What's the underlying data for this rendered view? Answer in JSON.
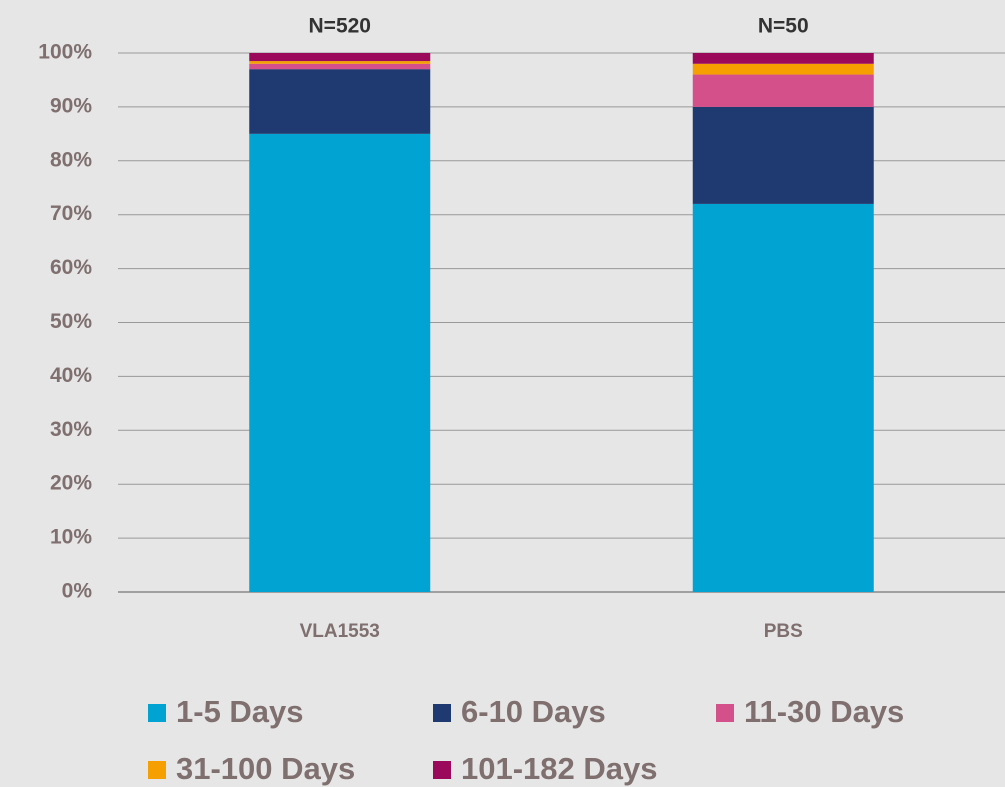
{
  "chart_data": {
    "type": "stacked_bar",
    "categories": [
      "VLA1553",
      "PBS"
    ],
    "annotations": [
      "N=520",
      "N=50"
    ],
    "series": [
      {
        "name": "1-5 Days",
        "color": "#00a3d1",
        "values": [
          85,
          72
        ]
      },
      {
        "name": "6-10 Days",
        "color": "#1f3a70",
        "values": [
          12,
          18
        ]
      },
      {
        "name": "11-30 Days",
        "color": "#d4508a",
        "values": [
          1,
          6
        ]
      },
      {
        "name": "31-100 Days",
        "color": "#f5a000",
        "values": [
          0.5,
          2
        ]
      },
      {
        "name": "101-182 Days",
        "color": "#9b0a5a",
        "values": [
          1.5,
          2
        ]
      }
    ],
    "ylim": [
      0,
      100
    ],
    "yticks": [
      {
        "value": 0,
        "label": "0%"
      },
      {
        "value": 10,
        "label": "10%"
      },
      {
        "value": 20,
        "label": "20%"
      },
      {
        "value": 30,
        "label": "30%"
      },
      {
        "value": 40,
        "label": "40%"
      },
      {
        "value": 50,
        "label": "50%"
      },
      {
        "value": 60,
        "label": "60%"
      },
      {
        "value": 70,
        "label": "70%"
      },
      {
        "value": 80,
        "label": "80%"
      },
      {
        "value": 90,
        "label": "90%"
      },
      {
        "value": 100,
        "label": "100%"
      }
    ],
    "grid": true,
    "legend": "bottom"
  }
}
